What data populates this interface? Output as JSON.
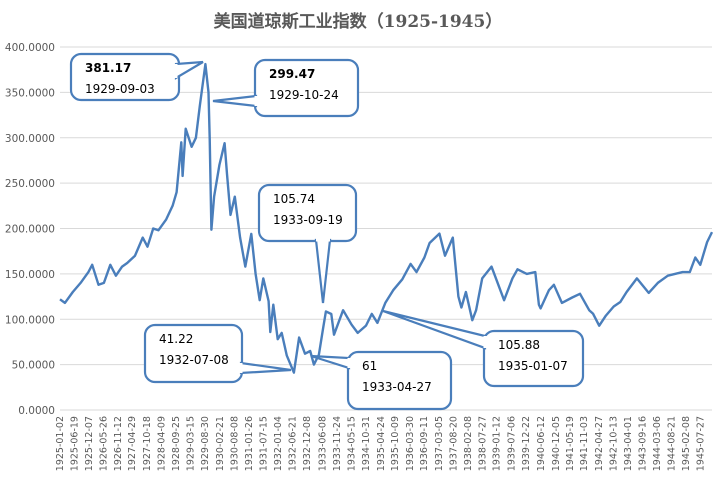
{
  "chart_data": {
    "type": "line",
    "title": "美国道琼斯工业指数（1925-1945）",
    "xlabel": "",
    "ylabel": "",
    "ylim": [
      0,
      400
    ],
    "grid": true,
    "legend": "none",
    "line_color": "#4a7ebb",
    "y_ticks": [
      "0.0000",
      "50.0000",
      "100.0000",
      "150.0000",
      "200.0000",
      "250.0000",
      "300.0000",
      "350.0000",
      "400.0000"
    ],
    "x_tick_labels": [
      "1925-01-02",
      "1925-06-19",
      "1925-12-07",
      "1926-05-26",
      "1926-11-12",
      "1927-04-29",
      "1927-10-18",
      "1928-04-09",
      "1928-09-25",
      "1929-03-15",
      "1929-08-30",
      "1930-02-21",
      "1930-08-08",
      "1931-01-26",
      "1931-07-15",
      "1932-01-04",
      "1932-06-21",
      "1932-12-08",
      "1933-06-08",
      "1933-11-24",
      "1934-05-15",
      "1934-10-31",
      "1935-04-24",
      "1935-10-09",
      "1936-03-30",
      "1936-09-11",
      "1937-03-05",
      "1937-08-20",
      "1938-02-08",
      "1938-07-27",
      "1939-01-12",
      "1939-07-06",
      "1939-12-22",
      "1940-06-12",
      "1940-12-05",
      "1941-05-19",
      "1941-11-03",
      "1942-04-27",
      "1942-10-13",
      "1943-04-01",
      "1943-09-16",
      "1944-03-06",
      "1944-08-21",
      "1945-02-08",
      "1945-07-27"
    ],
    "series": [
      {
        "values": [
          [
            "1925-01-02",
            122
          ],
          [
            "1925-03-01",
            118
          ],
          [
            "1925-06-01",
            130
          ],
          [
            "1925-09-01",
            140
          ],
          [
            "1925-12-01",
            152
          ],
          [
            "1926-01-15",
            160
          ],
          [
            "1926-03-30",
            138
          ],
          [
            "1926-06-01",
            140
          ],
          [
            "1926-08-15",
            160
          ],
          [
            "1926-10-20",
            148
          ],
          [
            "1926-12-31",
            158
          ],
          [
            "1927-03-01",
            162
          ],
          [
            "1927-06-01",
            170
          ],
          [
            "1927-08-30",
            190
          ],
          [
            "1927-10-25",
            180
          ],
          [
            "1927-12-31",
            200
          ],
          [
            "1928-03-01",
            198
          ],
          [
            "1928-06-01",
            210
          ],
          [
            "1928-08-15",
            225
          ],
          [
            "1928-10-01",
            240
          ],
          [
            "1928-11-25",
            295
          ],
          [
            "1928-12-10",
            258
          ],
          [
            "1929-01-15",
            310
          ],
          [
            "1929-03-26",
            290
          ],
          [
            "1929-05-15",
            300
          ],
          [
            "1929-06-30",
            335
          ],
          [
            "1929-09-03",
            381.17
          ],
          [
            "1929-10-10",
            350
          ],
          [
            "1929-10-24",
            299.47
          ],
          [
            "1929-11-13",
            198.69
          ],
          [
            "1929-12-15",
            235
          ],
          [
            "1930-02-15",
            270
          ],
          [
            "1930-04-17",
            294
          ],
          [
            "1930-05-15",
            260
          ],
          [
            "1930-06-25",
            215
          ],
          [
            "1930-08-15",
            235
          ],
          [
            "1930-10-15",
            190
          ],
          [
            "1930-12-16",
            158
          ],
          [
            "1931-02-24",
            194
          ],
          [
            "1931-04-15",
            150
          ],
          [
            "1931-06-02",
            121
          ],
          [
            "1931-07-15",
            145
          ],
          [
            "1931-09-15",
            120
          ],
          [
            "1931-10-05",
            86
          ],
          [
            "1931-11-09",
            116
          ],
          [
            "1931-12-31",
            78
          ],
          [
            "1932-02-15",
            85
          ],
          [
            "1932-04-15",
            60
          ],
          [
            "1932-07-08",
            41.22
          ],
          [
            "1932-09-07",
            79.93
          ],
          [
            "1932-11-15",
            62
          ],
          [
            "1933-01-15",
            65
          ],
          [
            "1933-02-27",
            50
          ],
          [
            "1933-04-27",
            61
          ],
          [
            "1933-06-15",
            90
          ],
          [
            "1933-07-18",
            108.67
          ],
          [
            "1933-09-19",
            105.74
          ],
          [
            "1933-10-21",
            83
          ],
          [
            "1934-02-05",
            110
          ],
          [
            "1934-05-15",
            94
          ],
          [
            "1934-07-26",
            85
          ],
          [
            "1934-10-31",
            93
          ],
          [
            "1935-01-07",
            105.88
          ],
          [
            "1935-03-14",
            96
          ],
          [
            "1935-06-15",
            118
          ],
          [
            "1935-09-15",
            132
          ],
          [
            "1935-12-31",
            144
          ],
          [
            "1936-04-06",
            161
          ],
          [
            "1936-06-15",
            152
          ],
          [
            "1936-09-15",
            168
          ],
          [
            "1936-11-15",
            184
          ],
          [
            "1937-03-10",
            194.4
          ],
          [
            "1937-05-15",
            170
          ],
          [
            "1937-08-14",
            190
          ],
          [
            "1937-10-19",
            125
          ],
          [
            "1937-11-24",
            113
          ],
          [
            "1938-01-15",
            130
          ],
          [
            "1938-03-31",
            99
          ],
          [
            "1938-05-15",
            110
          ],
          [
            "1938-07-25",
            145
          ],
          [
            "1938-11-12",
            158
          ],
          [
            "1939-04-08",
            121
          ],
          [
            "1939-07-15",
            145
          ],
          [
            "1939-09-12",
            155
          ],
          [
            "1939-12-31",
            150
          ],
          [
            "1940-04-08",
            152
          ],
          [
            "1940-05-21",
            116
          ],
          [
            "1940-06-10",
            112
          ],
          [
            "1940-09-15",
            132
          ],
          [
            "1940-11-12",
            138
          ],
          [
            "1941-02-14",
            118
          ],
          [
            "1941-06-15",
            124
          ],
          [
            "1941-09-15",
            128
          ],
          [
            "1941-12-31",
            110
          ],
          [
            "1942-02-15",
            106
          ],
          [
            "1942-04-28",
            92.92
          ],
          [
            "1942-07-15",
            104
          ],
          [
            "1942-10-15",
            114
          ],
          [
            "1942-12-31",
            119
          ],
          [
            "1943-03-15",
            130
          ],
          [
            "1943-07-14",
            145
          ],
          [
            "1943-11-30",
            129
          ],
          [
            "1944-03-15",
            140
          ],
          [
            "1944-07-10",
            148
          ],
          [
            "1944-12-31",
            152
          ],
          [
            "1945-03-26",
            152
          ],
          [
            "1945-05-29",
            168
          ],
          [
            "1945-07-27",
            160
          ],
          [
            "1945-10-15",
            185
          ],
          [
            "1945-12-11",
            196
          ]
        ]
      }
    ],
    "annotations": [
      {
        "value": "381.17",
        "date": "1929-09-03"
      },
      {
        "value": "299.47",
        "date": "1929-10-24"
      },
      {
        "value": "105.74",
        "date": "1933-09-19"
      },
      {
        "value": "41.22",
        "date": "1932-07-08"
      },
      {
        "value": "61",
        "date": "1933-04-27"
      },
      {
        "value": "105.88",
        "date": "1935-01-07"
      }
    ]
  }
}
